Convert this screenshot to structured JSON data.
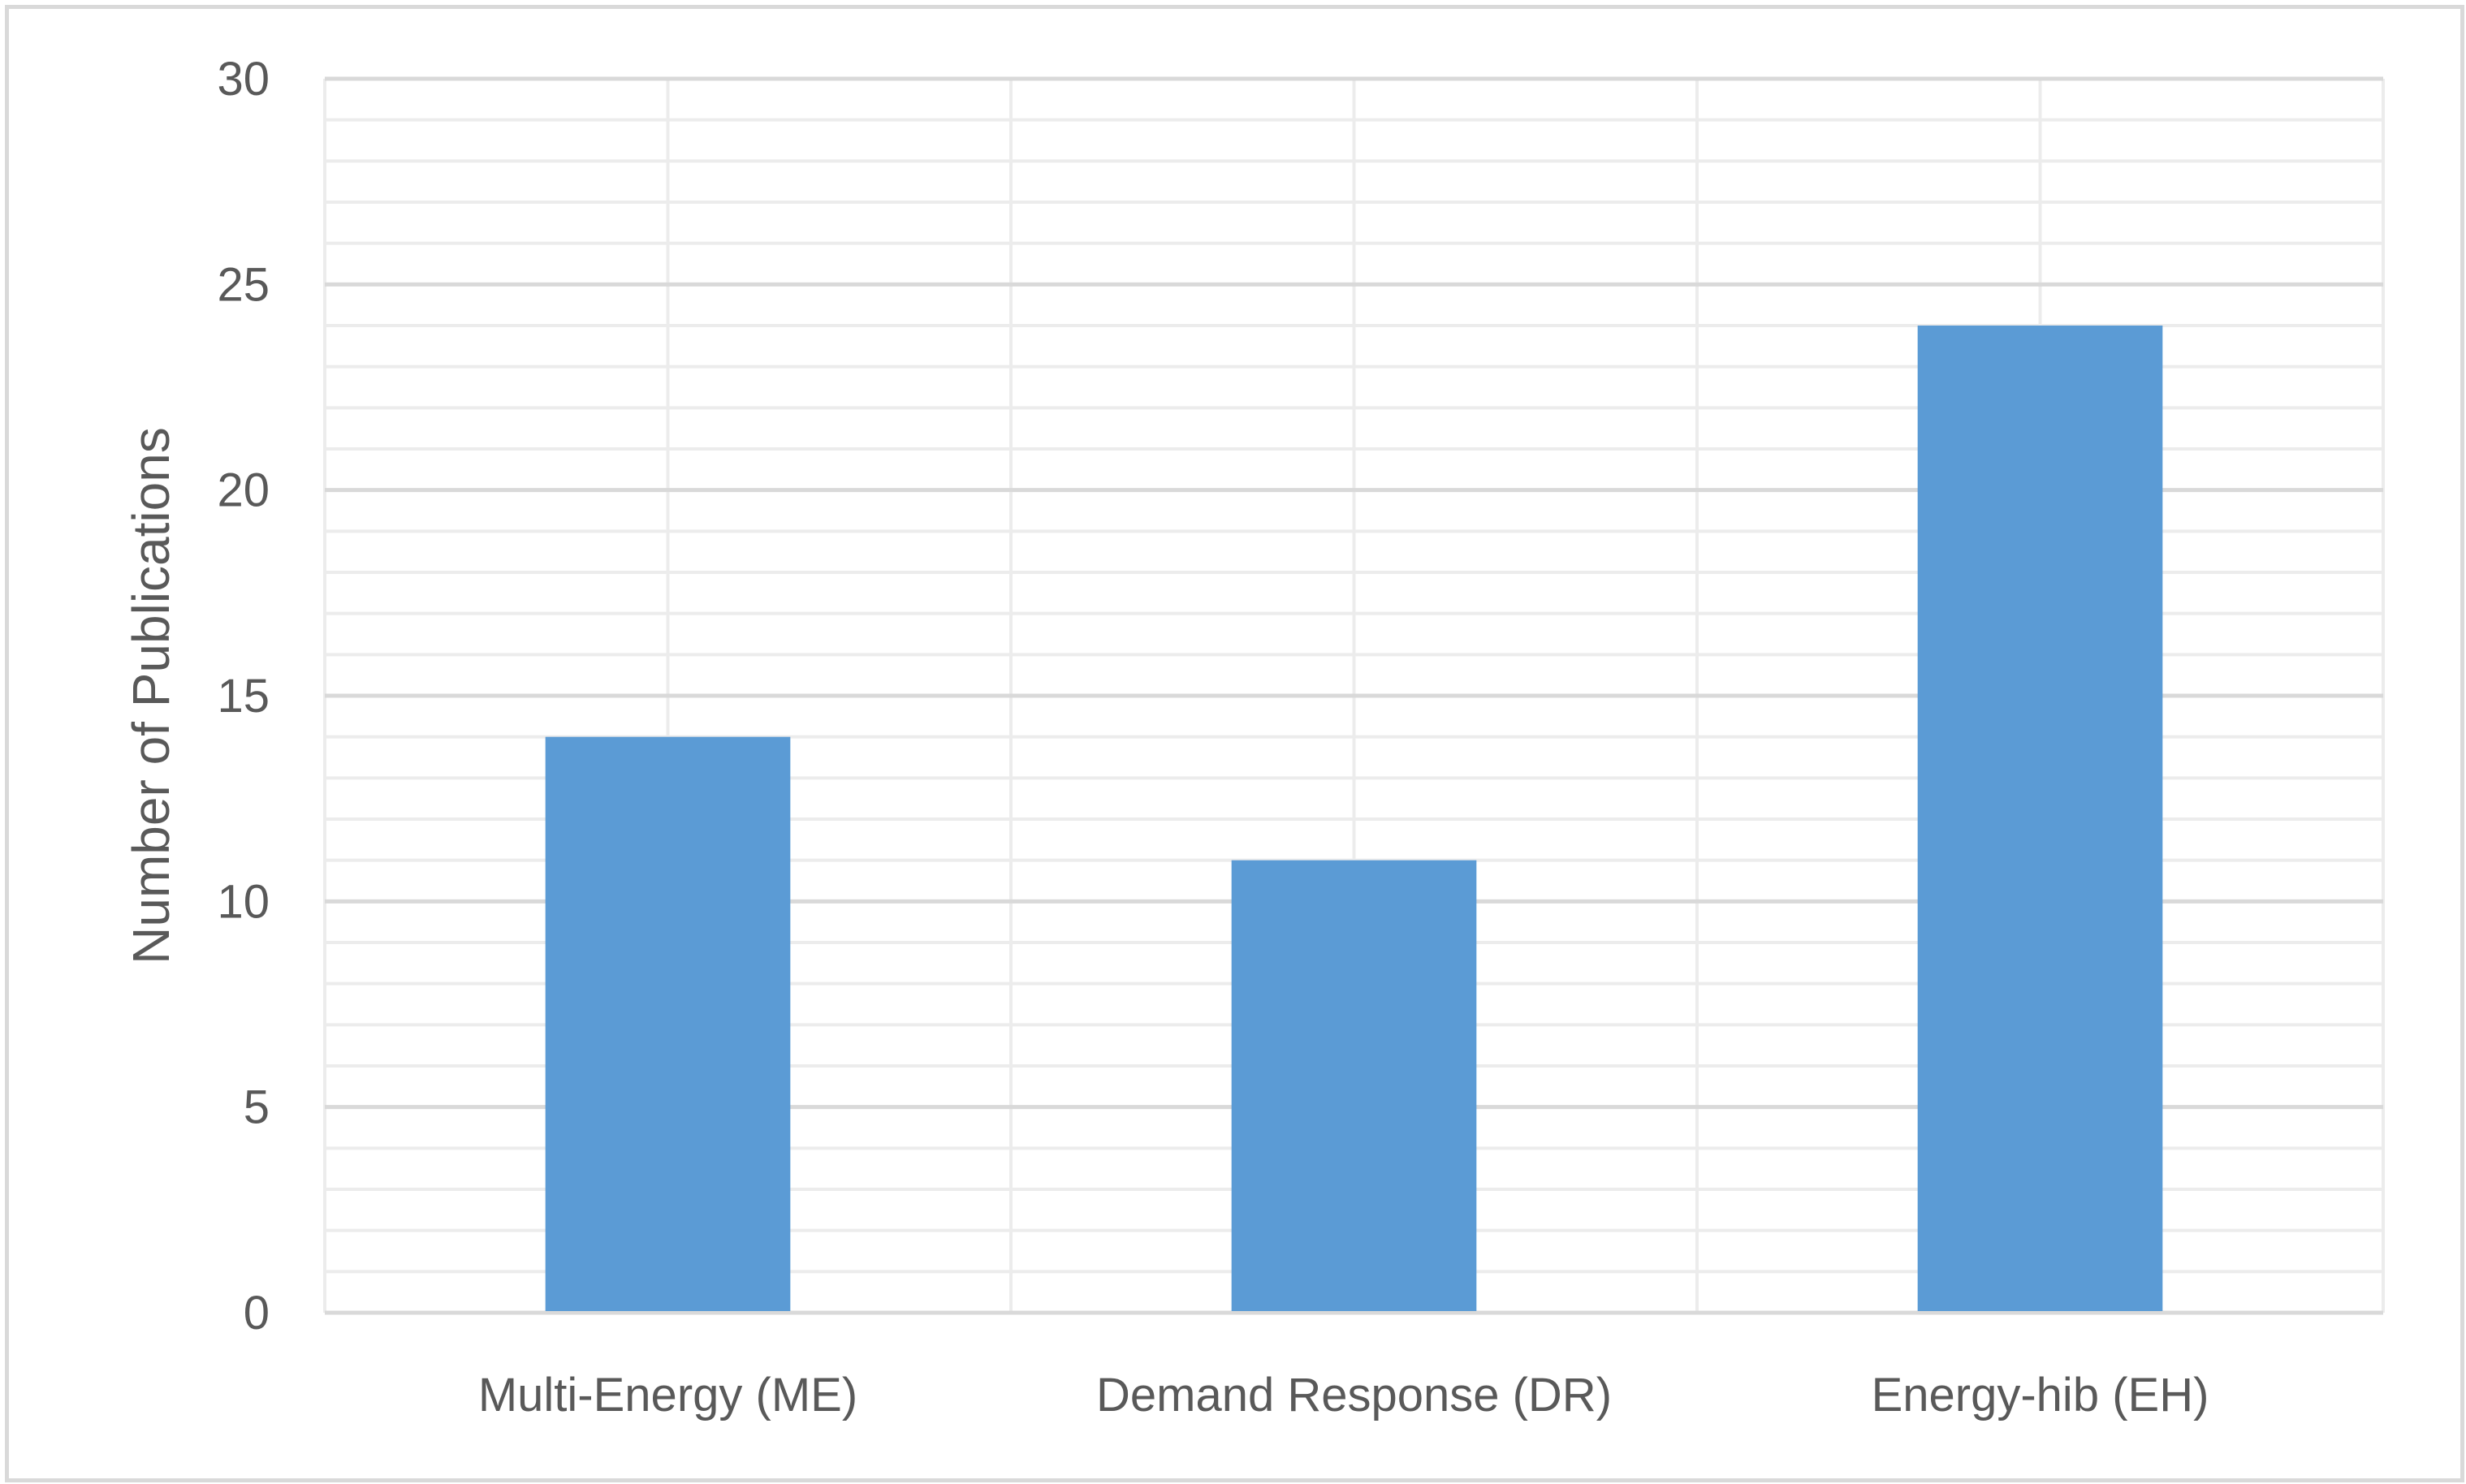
{
  "chart_data": {
    "type": "bar",
    "title": "",
    "xlabel": "",
    "ylabel": "Number of Publications",
    "categories": [
      "Multi-Energy (ME)",
      "Demand Response (DR)",
      "Energy-hib (EH)"
    ],
    "values": [
      14,
      11,
      24
    ],
    "ylim": [
      0,
      30
    ],
    "yticks": [
      0,
      5,
      10,
      15,
      20,
      25,
      30
    ],
    "minor_step": 1,
    "grid": true,
    "legend": "none",
    "colors": {
      "bar": "#5b9bd5",
      "major_grid": "#d9d9d9",
      "minor_grid": "#ececec",
      "text": "#595959"
    }
  }
}
